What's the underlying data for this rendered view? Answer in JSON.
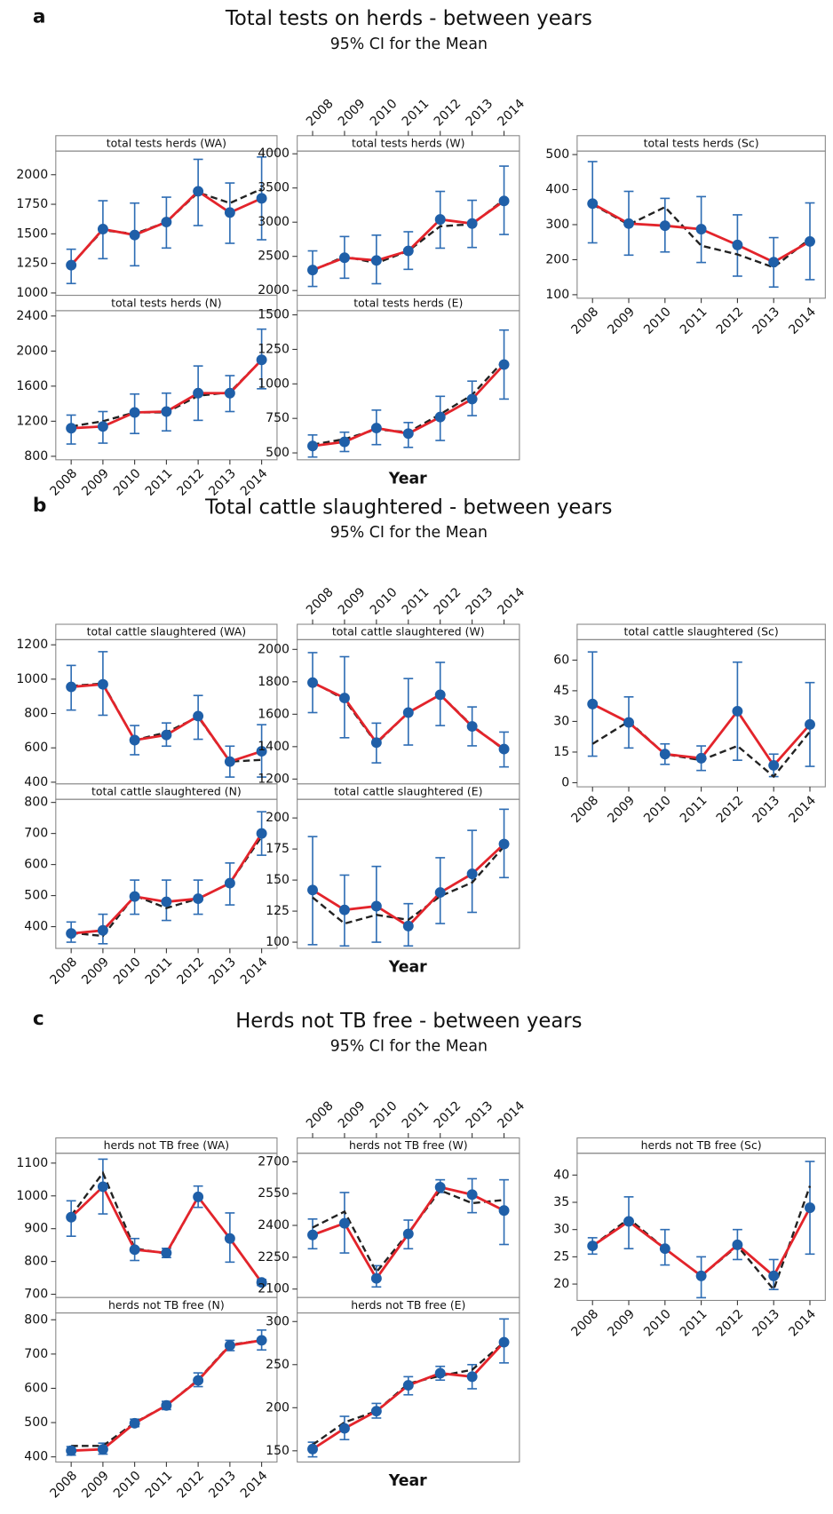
{
  "chart_data": [
    {
      "type": "line",
      "label": "a",
      "title": "Total tests on herds - between years",
      "subtitle": "95% CI for the Mean",
      "x_label": "Year",
      "categories": [
        "2008",
        "2009",
        "2010",
        "2011",
        "2012",
        "2013",
        "2014"
      ],
      "marker_color": "#1f5fa8",
      "errorbar_color": "#2e6db4",
      "panels": [
        {
          "title": "total tests herds (WA)",
          "ylim": [
            980,
            2200
          ],
          "yticks": [
            1000,
            1250,
            1500,
            1750,
            2000
          ],
          "series": [
            {
              "color": "#e3242b",
              "values": [
                1235,
                1540,
                1490,
                1600,
                1860,
                1680,
                1800
              ]
            },
            {
              "color": "#222222",
              "dashed": true,
              "values": [
                1240,
                1530,
                1500,
                1600,
                1850,
                1760,
                1880
              ]
            }
          ],
          "ci_lower": [
            1080,
            1290,
            1230,
            1380,
            1570,
            1420,
            1450
          ],
          "ci_upper": [
            1370,
            1780,
            1760,
            1810,
            2130,
            1930,
            2150
          ]
        },
        {
          "title": "total tests herds (W)",
          "ylim": [
            1930,
            4040
          ],
          "yticks": [
            2000,
            2500,
            3000,
            3500,
            4000
          ],
          "series": [
            {
              "color": "#e3242b",
              "values": [
                2300,
                2480,
                2440,
                2580,
                3040,
                2980,
                3310
              ]
            },
            {
              "color": "#222222",
              "dashed": true,
              "values": [
                2290,
                2500,
                2400,
                2580,
                2940,
                2970,
                3330
              ]
            }
          ],
          "ci_lower": [
            2060,
            2180,
            2100,
            2310,
            2620,
            2630,
            2820
          ],
          "ci_upper": [
            2580,
            2790,
            2810,
            2860,
            3450,
            3320,
            3820
          ]
        },
        {
          "title": "total tests herds (Sc)",
          "ylim": [
            90,
            510
          ],
          "yticks": [
            100,
            200,
            300,
            400,
            500
          ],
          "series": [
            {
              "color": "#e3242b",
              "values": [
                360,
                303,
                297,
                287,
                242,
                193,
                252
              ]
            },
            {
              "color": "#222222",
              "dashed": true,
              "values": [
                358,
                300,
                350,
                240,
                215,
                178,
                260
              ]
            }
          ],
          "ci_lower": [
            248,
            213,
            222,
            192,
            153,
            122,
            143
          ],
          "ci_upper": [
            480,
            395,
            375,
            380,
            328,
            263,
            362
          ]
        },
        {
          "title": "total tests herds (N)",
          "ylim": [
            760,
            2460
          ],
          "yticks": [
            800,
            1200,
            1600,
            2000,
            2400
          ],
          "series": [
            {
              "color": "#e3242b",
              "values": [
                1120,
                1140,
                1300,
                1310,
                1520,
                1520,
                1900
              ]
            },
            {
              "color": "#222222",
              "dashed": true,
              "values": [
                1140,
                1200,
                1300,
                1300,
                1490,
                1530,
                1900
              ]
            }
          ],
          "ci_lower": [
            940,
            950,
            1060,
            1090,
            1210,
            1310,
            1570
          ],
          "ci_upper": [
            1270,
            1310,
            1510,
            1520,
            1830,
            1720,
            2250
          ]
        },
        {
          "title": "total tests herds (E)",
          "ylim": [
            450,
            1530
          ],
          "yticks": [
            500,
            750,
            1000,
            1250,
            1500
          ],
          "series": [
            {
              "color": "#e3242b",
              "values": [
                550,
                580,
                680,
                640,
                760,
                890,
                1140
              ]
            },
            {
              "color": "#222222",
              "dashed": true,
              "values": [
                560,
                600,
                670,
                650,
                780,
                920,
                1170
              ]
            }
          ],
          "ci_lower": [
            470,
            510,
            560,
            540,
            590,
            770,
            890
          ],
          "ci_upper": [
            630,
            650,
            810,
            720,
            910,
            1020,
            1390
          ]
        }
      ]
    },
    {
      "type": "line",
      "label": "b",
      "title": "Total cattle slaughtered - between years",
      "subtitle": "95% CI for the Mean",
      "x_label": "Year",
      "categories": [
        "2008",
        "2009",
        "2010",
        "2011",
        "2012",
        "2013",
        "2014"
      ],
      "marker_color": "#1f5fa8",
      "errorbar_color": "#2e6db4",
      "panels": [
        {
          "title": "total cattle slaughtered (WA)",
          "ylim": [
            390,
            1230
          ],
          "yticks": [
            400,
            600,
            800,
            1000,
            1200
          ],
          "series": [
            {
              "color": "#e3242b",
              "values": [
                955,
                970,
                645,
                675,
                785,
                520,
                580
              ]
            },
            {
              "color": "#222222",
              "dashed": true,
              "values": [
                960,
                975,
                645,
                690,
                780,
                520,
                530
              ]
            }
          ],
          "ci_lower": [
            820,
            790,
            560,
            610,
            650,
            430,
            430
          ],
          "ci_upper": [
            1080,
            1160,
            730,
            745,
            905,
            610,
            735
          ]
        },
        {
          "title": "total cattle slaughtered (W)",
          "ylim": [
            1170,
            2060
          ],
          "yticks": [
            1200,
            1400,
            1600,
            1800,
            2000
          ],
          "series": [
            {
              "color": "#e3242b",
              "values": [
                1795,
                1700,
                1425,
                1610,
                1720,
                1525,
                1385
              ]
            },
            {
              "color": "#222222",
              "dashed": true,
              "values": [
                1800,
                1690,
                1420,
                1610,
                1720,
                1530,
                1380
              ]
            }
          ],
          "ci_lower": [
            1610,
            1455,
            1300,
            1410,
            1530,
            1405,
            1275
          ],
          "ci_upper": [
            1980,
            1955,
            1545,
            1820,
            1920,
            1645,
            1490
          ]
        },
        {
          "title": "total cattle slaughtered (Sc)",
          "ylim": [
            -2,
            70
          ],
          "yticks": [
            0,
            15,
            30,
            45,
            60
          ],
          "series": [
            {
              "color": "#e3242b",
              "values": [
                38.5,
                29.5,
                14,
                12,
                35,
                8.5,
                28.5
              ]
            },
            {
              "color": "#222222",
              "dashed": true,
              "values": [
                19,
                30,
                14,
                11,
                18,
                3,
                25
              ]
            }
          ],
          "ci_lower": [
            13,
            17,
            9,
            6,
            11,
            3,
            8
          ],
          "ci_upper": [
            64,
            42,
            19,
            18,
            59,
            14,
            49
          ]
        },
        {
          "title": "total cattle slaughtered (N)",
          "ylim": [
            330,
            810
          ],
          "yticks": [
            400,
            500,
            600,
            700,
            800
          ],
          "series": [
            {
              "color": "#e3242b",
              "values": [
                378,
                388,
                497,
                480,
                490,
                540,
                700
              ]
            },
            {
              "color": "#222222",
              "dashed": true,
              "values": [
                380,
                370,
                500,
                460,
                490,
                540,
                690
              ]
            }
          ],
          "ci_lower": [
            350,
            345,
            440,
            420,
            440,
            470,
            630
          ],
          "ci_upper": [
            415,
            440,
            550,
            550,
            550,
            605,
            770
          ]
        },
        {
          "title": "total cattle slaughtered (E)",
          "ylim": [
            95,
            215
          ],
          "yticks": [
            100,
            125,
            150,
            175,
            200
          ],
          "series": [
            {
              "color": "#e3242b",
              "values": [
                142,
                126,
                129,
                113,
                140,
                155,
                179
              ]
            },
            {
              "color": "#222222",
              "dashed": true,
              "values": [
                136,
                115,
                122,
                118,
                137,
                148,
                177
              ]
            }
          ],
          "ci_lower": [
            98,
            97,
            100,
            97,
            115,
            124,
            152
          ],
          "ci_upper": [
            185,
            154,
            161,
            131,
            168,
            190,
            207
          ]
        }
      ]
    },
    {
      "type": "line",
      "label": "c",
      "title": "Herds not TB free - between years",
      "subtitle": "95% CI for the Mean",
      "x_label": "Year",
      "categories": [
        "2008",
        "2009",
        "2010",
        "2011",
        "2012",
        "2013",
        "2014"
      ],
      "marker_color": "#1f5fa8",
      "errorbar_color": "#2e6db4",
      "panels": [
        {
          "title": "herds not TB free (WA)",
          "ylim": [
            690,
            1130
          ],
          "yticks": [
            700,
            800,
            900,
            1000,
            1100
          ],
          "series": [
            {
              "color": "#e3242b",
              "values": [
                935,
                1028,
                836,
                826,
                997,
                870,
                736
              ]
            },
            {
              "color": "#222222",
              "dashed": true,
              "values": [
                940,
                1070,
                840,
                824,
                997,
                870,
                735
              ]
            }
          ],
          "ci_lower": [
            877,
            945,
            803,
            812,
            965,
            798,
            727
          ],
          "ci_upper": [
            985,
            1112,
            870,
            840,
            1030,
            948,
            745
          ]
        },
        {
          "title": "herds not TB free (W)",
          "ylim": [
            2060,
            2740
          ],
          "yticks": [
            2100,
            2250,
            2400,
            2550,
            2700
          ],
          "series": [
            {
              "color": "#e3242b",
              "values": [
                2355,
                2410,
                2150,
                2360,
                2580,
                2545,
                2470
              ]
            },
            {
              "color": "#222222",
              "dashed": true,
              "values": [
                2390,
                2465,
                2180,
                2365,
                2565,
                2505,
                2520
              ]
            }
          ],
          "ci_lower": [
            2290,
            2270,
            2110,
            2290,
            2555,
            2460,
            2310
          ],
          "ci_upper": [
            2430,
            2555,
            2210,
            2425,
            2615,
            2620,
            2615
          ]
        },
        {
          "title": "herds not TB free (Sc)",
          "ylim": [
            17,
            44
          ],
          "yticks": [
            20,
            25,
            30,
            35,
            40
          ],
          "series": [
            {
              "color": "#e3242b",
              "values": [
                27,
                31.5,
                26.5,
                21.5,
                27.2,
                21.5,
                34
              ]
            },
            {
              "color": "#222222",
              "dashed": true,
              "values": [
                27,
                32,
                26.5,
                21.5,
                27,
                19,
                38
              ]
            }
          ],
          "ci_lower": [
            25.5,
            26.5,
            23.5,
            17.5,
            24.5,
            19,
            25.5
          ],
          "ci_upper": [
            28.5,
            36,
            30,
            25,
            30,
            24.5,
            42.5
          ]
        },
        {
          "title": "herds not TB free (N)",
          "ylim": [
            385,
            820
          ],
          "yticks": [
            400,
            500,
            600,
            700,
            800
          ],
          "series": [
            {
              "color": "#e3242b",
              "values": [
                418,
                422,
                498,
                550,
                623,
                725,
                740
              ]
            },
            {
              "color": "#222222",
              "dashed": true,
              "values": [
                432,
                432,
                500,
                550,
                625,
                727,
                740
              ]
            }
          ],
          "ci_lower": [
            405,
            408,
            488,
            538,
            605,
            710,
            712
          ],
          "ci_upper": [
            430,
            440,
            510,
            562,
            645,
            740,
            770
          ]
        },
        {
          "title": "herds not TB free (E)",
          "ylim": [
            137,
            310
          ],
          "yticks": [
            150,
            200,
            250,
            300
          ],
          "series": [
            {
              "color": "#e3242b",
              "values": [
                152,
                176,
                196,
                226,
                240,
                236,
                276
              ]
            },
            {
              "color": "#222222",
              "dashed": true,
              "values": [
                157,
                183,
                196,
                228,
                237,
                244,
                276
              ]
            }
          ],
          "ci_lower": [
            143,
            163,
            188,
            215,
            232,
            222,
            252
          ],
          "ci_upper": [
            160,
            190,
            205,
            236,
            248,
            250,
            303
          ]
        }
      ]
    }
  ]
}
